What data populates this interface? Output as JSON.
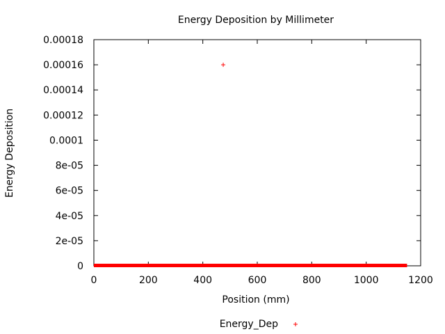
{
  "chart_data": {
    "type": "scatter",
    "title": "Energy Deposition by Millimeter",
    "xlabel": "Position (mm)",
    "ylabel": "Energy Deposition",
    "xlim": [
      0,
      1200
    ],
    "ylim": [
      0,
      0.00018
    ],
    "x_ticks": [
      0,
      200,
      400,
      600,
      800,
      1000,
      1200
    ],
    "x_tick_labels": [
      "0",
      "200",
      "400",
      "600",
      "800",
      "1000",
      "1200"
    ],
    "y_ticks": [
      0,
      2e-05,
      4e-05,
      6e-05,
      8e-05,
      0.0001,
      0.00012,
      0.00014,
      0.00016,
      0.00018
    ],
    "y_tick_labels": [
      "0",
      "2e-05",
      "4e-05",
      "6e-05",
      "8e-05",
      "0.0001",
      "0.00012",
      "0.00014",
      "0.00016",
      "0.00018"
    ],
    "grid": false,
    "legend_position": "bottom",
    "marker": "+",
    "series": [
      {
        "name": "Energy_Dep",
        "color": "#ff0000",
        "points": [
          [
            475,
            0.00016
          ]
        ],
        "baseline_run": {
          "x_from": 0,
          "x_to": 1150,
          "y": 0
        }
      }
    ]
  }
}
